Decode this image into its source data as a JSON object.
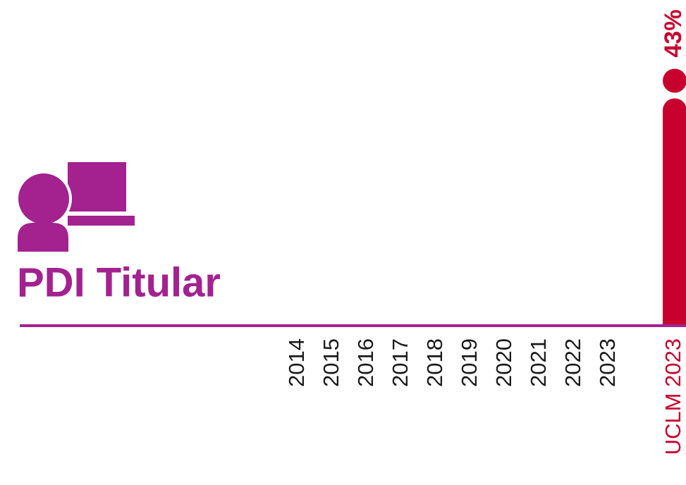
{
  "chart_data": {
    "type": "bar",
    "title": "PDI Titular",
    "categories": [
      "2014",
      "2015",
      "2016",
      "2017",
      "2018",
      "2019",
      "2020",
      "2021",
      "2022",
      "2023",
      "UCLM 2023"
    ],
    "values": [
      null,
      null,
      null,
      null,
      null,
      null,
      null,
      null,
      null,
      null,
      43
    ],
    "value_labels": [
      null,
      null,
      null,
      null,
      null,
      null,
      null,
      null,
      null,
      null,
      "43%"
    ],
    "color": "#c8002d",
    "axis_color": "#a3228f"
  }
}
